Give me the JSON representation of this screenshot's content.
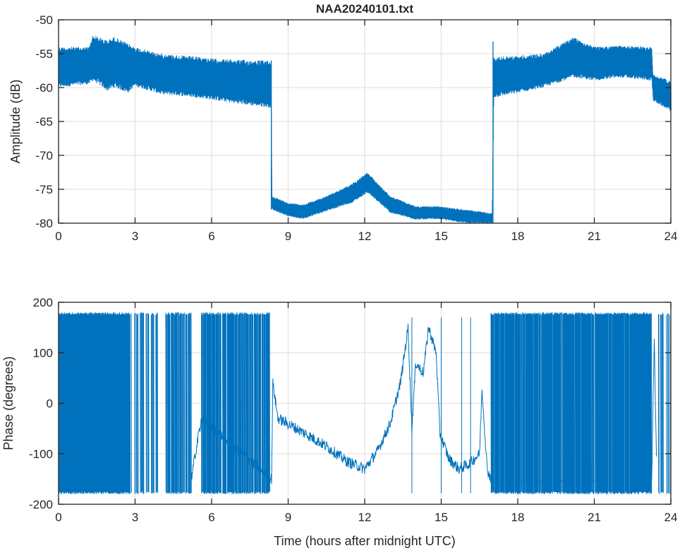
{
  "chart_data": [
    {
      "type": "line",
      "title": "NAA20240101.txt",
      "xlabel": "",
      "ylabel": "Amplitude (dB)",
      "xlim": [
        0,
        24
      ],
      "ylim": [
        -80,
        -50
      ],
      "xticks": [
        0,
        3,
        6,
        9,
        12,
        15,
        18,
        21,
        24
      ],
      "yticks": [
        -50,
        -55,
        -60,
        -65,
        -70,
        -75,
        -80
      ],
      "grid": true,
      "color": "#0072BD",
      "series": [
        {
          "name": "amplitude envelope",
          "points": [
            {
              "t": 0,
              "hi": -54,
              "lo": -60
            },
            {
              "t": 1.2,
              "hi": -54,
              "lo": -59.5
            },
            {
              "t": 1.35,
              "hi": -52.2,
              "lo": -59
            },
            {
              "t": 1.9,
              "hi": -53,
              "lo": -60.5
            },
            {
              "t": 2.2,
              "hi": -52.5,
              "lo": -60
            },
            {
              "t": 2.7,
              "hi": -53.5,
              "lo": -60.8
            },
            {
              "t": 3,
              "hi": -54,
              "lo": -59.8
            },
            {
              "t": 4,
              "hi": -55,
              "lo": -61
            },
            {
              "t": 5,
              "hi": -55.3,
              "lo": -61.3
            },
            {
              "t": 6,
              "hi": -55.7,
              "lo": -61.8
            },
            {
              "t": 7,
              "hi": -55.9,
              "lo": -62.4
            },
            {
              "t": 8.33,
              "hi": -56,
              "lo": -63
            },
            {
              "t": 8.36,
              "hi": -76,
              "lo": -78
            },
            {
              "t": 9,
              "hi": -77,
              "lo": -79
            },
            {
              "t": 9.6,
              "hi": -77.2,
              "lo": -79.4
            },
            {
              "t": 10.5,
              "hi": -76,
              "lo": -78.2
            },
            {
              "t": 11.5,
              "hi": -74.2,
              "lo": -77
            },
            {
              "t": 12.1,
              "hi": -72.5,
              "lo": -75.5
            },
            {
              "t": 13,
              "hi": -76,
              "lo": -78.5
            },
            {
              "t": 14,
              "hi": -77.5,
              "lo": -79.5
            },
            {
              "t": 14.9,
              "hi": -77.5,
              "lo": -79.4
            },
            {
              "t": 16,
              "hi": -78,
              "lo": -80
            },
            {
              "t": 17.0,
              "hi": -78.5,
              "lo": -80
            },
            {
              "t": 17.05,
              "hi": -55.5,
              "lo": -61.5
            },
            {
              "t": 18,
              "hi": -55.3,
              "lo": -60.8
            },
            {
              "t": 19,
              "hi": -55,
              "lo": -60
            },
            {
              "t": 20.2,
              "hi": -52.5,
              "lo": -58.5
            },
            {
              "t": 21,
              "hi": -54,
              "lo": -59
            },
            {
              "t": 22,
              "hi": -53.8,
              "lo": -58.5
            },
            {
              "t": 23.25,
              "hi": -54,
              "lo": -59
            },
            {
              "t": 23.3,
              "hi": -58,
              "lo": -62
            },
            {
              "t": 24,
              "hi": -59,
              "lo": -63.5
            }
          ]
        }
      ]
    },
    {
      "type": "line",
      "title": "",
      "xlabel": "Time (hours after midnight UTC)",
      "ylabel": "Phase (degrees)",
      "xlim": [
        0,
        24
      ],
      "ylim": [
        -200,
        200
      ],
      "xticks": [
        0,
        3,
        6,
        9,
        12,
        15,
        18,
        21,
        24
      ],
      "yticks": [
        200,
        100,
        0,
        -100,
        -200
      ],
      "grid": true,
      "color": "#0072BD",
      "wrapped_intervals": [
        {
          "start": 0,
          "end": 2.8,
          "density": 1.0
        },
        {
          "start": 2.8,
          "end": 3.9,
          "density": 0.5
        },
        {
          "start": 4.2,
          "end": 5.2,
          "density": 0.6
        },
        {
          "start": 5.6,
          "end": 8.3,
          "density": 0.85
        },
        {
          "start": 16.95,
          "end": 23.25,
          "density": 0.95
        },
        {
          "start": 23.45,
          "end": 24,
          "density": 0.4
        }
      ],
      "series": [
        {
          "name": "phase trend",
          "points": [
            {
              "t": 5.2,
              "v": -150
            },
            {
              "t": 5.4,
              "v": -90
            },
            {
              "t": 5.6,
              "v": -30
            },
            {
              "t": 8.35,
              "v": -150
            },
            {
              "t": 8.4,
              "v": 40
            },
            {
              "t": 8.6,
              "v": -30
            },
            {
              "t": 9.5,
              "v": -55
            },
            {
              "t": 10.5,
              "v": -85
            },
            {
              "t": 11.3,
              "v": -115
            },
            {
              "t": 12,
              "v": -130
            },
            {
              "t": 12.5,
              "v": -95
            },
            {
              "t": 13,
              "v": -40
            },
            {
              "t": 13.4,
              "v": 40
            },
            {
              "t": 13.7,
              "v": 150
            },
            {
              "t": 13.85,
              "v": -50
            },
            {
              "t": 14.0,
              "v": 80
            },
            {
              "t": 14.3,
              "v": 60
            },
            {
              "t": 14.5,
              "v": 150
            },
            {
              "t": 14.8,
              "v": 100
            },
            {
              "t": 14.95,
              "v": -60
            },
            {
              "t": 15.3,
              "v": -110
            },
            {
              "t": 15.7,
              "v": -130
            },
            {
              "t": 16.1,
              "v": -120
            },
            {
              "t": 16.5,
              "v": -100
            },
            {
              "t": 16.6,
              "v": 30
            },
            {
              "t": 16.8,
              "v": -130
            },
            {
              "t": 16.95,
              "v": -150
            },
            {
              "t": 23.25,
              "v": -150
            },
            {
              "t": 23.35,
              "v": 130
            },
            {
              "t": 23.45,
              "v": -150
            }
          ]
        }
      ]
    }
  ]
}
